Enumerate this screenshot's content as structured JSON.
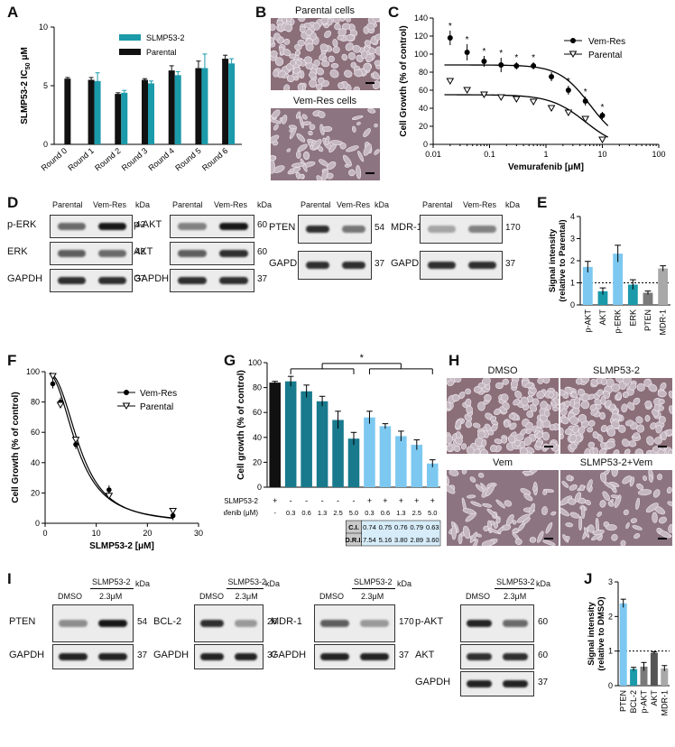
{
  "panel_labels": {
    "A": "A",
    "B": "B",
    "C": "C",
    "D": "D",
    "E": "E",
    "F": "F",
    "G": "G",
    "H": "H",
    "I": "I",
    "J": "J"
  },
  "colors": {
    "teal": "#1b9aaa",
    "darkteal": "#187a8c",
    "lightblue": "#7cc8f0",
    "black": "#111111",
    "gray": "#7a7a7a",
    "lightgray": "#a8a8a8"
  },
  "panelB": {
    "top_title": "Parental cells",
    "bottom_title": "Vem-Res cells"
  },
  "panelD": {
    "header": {
      "parental": "Parental",
      "vemres": "Vem-Res",
      "kda": "kDa"
    },
    "blots": [
      {
        "rows": [
          {
            "label": "p-ERK",
            "kda": "42"
          },
          {
            "label": "ERK",
            "kda": "42"
          },
          {
            "label": "GAPDH",
            "kda": "37"
          }
        ]
      },
      {
        "rows": [
          {
            "label": "p-AKT",
            "kda": "60"
          },
          {
            "label": "AKT",
            "kda": "60"
          },
          {
            "label": "GAPDH",
            "kda": "37"
          }
        ]
      },
      {
        "rows": [
          {
            "label": "PTEN",
            "kda": "54"
          },
          {
            "label": "GAPDH",
            "kda": "37"
          }
        ]
      },
      {
        "rows": [
          {
            "label": "MDR-1",
            "kda": "170"
          },
          {
            "label": "GAPDH",
            "kda": "37"
          }
        ]
      }
    ]
  },
  "panelG_table": {
    "row1_label": "SLMP53-2",
    "row2_label": "Vemurafenib (μM)",
    "slmp": [
      "+",
      "-",
      "-",
      "-",
      "-",
      "-",
      "+",
      "+",
      "+",
      "+",
      "+"
    ],
    "vem": [
      "-",
      "0.3",
      "0.6",
      "1.3",
      "2.5",
      "5.0",
      "0.3",
      "0.6",
      "1.3",
      "2.5",
      "5.0"
    ],
    "ci_label": "C.I.",
    "ci": [
      "0.74",
      "0.75",
      "0.76",
      "0.79",
      "0.63"
    ],
    "dri_label": "D.R.I.",
    "dri": [
      "7.54",
      "5.16",
      "3.80",
      "2.89",
      "3.60"
    ],
    "star": "*"
  },
  "panelH": {
    "labels": [
      "DMSO",
      "SLMP53-2",
      "Vem",
      "SLMP53-2+Vem"
    ]
  },
  "panelI": {
    "blots": [
      {
        "label": "PTEN",
        "kda": "54",
        "gapdh": "GAPDH",
        "gkda": "37"
      },
      {
        "label": "BCL-2",
        "kda": "26",
        "gapdh": "GAPDH",
        "gkda": "37"
      },
      {
        "label": "MDR-1",
        "kda": "170",
        "gapdh": "GAPDH",
        "gkda": "37"
      },
      {
        "label": "p-AKT",
        "kda": "60",
        "label2": "AKT",
        "kda2": "60",
        "gapdh": "GAPDH",
        "gkda": "37"
      }
    ],
    "treatment": "SLMP53-2",
    "dmso": "DMSO",
    "dose": "2.3μM",
    "kda": "kDa"
  },
  "chart_data": [
    {
      "panel": "A",
      "type": "bar",
      "ylabel": "SLMP53-2 IC50 μM",
      "ylim": [
        0,
        10
      ],
      "yticks": [
        0,
        5,
        10
      ],
      "categories": [
        "Round 0",
        "Round 1",
        "Round 2",
        "Round 3",
        "Round 4",
        "Round 5",
        "Round 6"
      ],
      "series": [
        {
          "name": "SLMP53-2",
          "color": "#1b9aaa",
          "values": [
            null,
            5.4,
            4.4,
            5.2,
            5.9,
            6.5,
            6.9
          ],
          "err": [
            0,
            0.7,
            0.2,
            0.2,
            0.3,
            1.2,
            0.4
          ]
        },
        {
          "name": "Parental",
          "color": "#111111",
          "values": [
            5.6,
            5.5,
            4.3,
            5.5,
            6.3,
            6.5,
            7.3
          ],
          "err": [
            0.1,
            0.2,
            0.1,
            0.1,
            0.4,
            0.6,
            0.3
          ]
        }
      ],
      "legend": "top-left"
    },
    {
      "panel": "C",
      "type": "scatter",
      "xlabel": "Vemurafenib [μM]",
      "ylabel": "Cell Growth (% of control)",
      "xscale": "log",
      "xlim": [
        0.01,
        100
      ],
      "xticks": [
        "0.01",
        "0.1",
        "1",
        "10",
        "100"
      ],
      "ylim": [
        0,
        140
      ],
      "yticks": [
        0,
        20,
        40,
        60,
        80,
        100,
        120,
        140
      ],
      "series": [
        {
          "name": "Vem-Res",
          "marker": "filled-circle",
          "x": [
            0.02,
            0.04,
            0.08,
            0.16,
            0.3,
            0.6,
            1.25,
            2.5,
            5,
            10
          ],
          "y": [
            118,
            102,
            92,
            88,
            87,
            87,
            75,
            60,
            48,
            32
          ],
          "err": [
            8,
            9,
            6,
            8,
            4,
            4,
            5,
            5,
            5,
            4
          ],
          "star": [
            true,
            true,
            true,
            true,
            true,
            true,
            false,
            true,
            true,
            true
          ]
        },
        {
          "name": "Parental",
          "marker": "open-triangle",
          "x": [
            0.02,
            0.04,
            0.08,
            0.16,
            0.3,
            0.6,
            1.25,
            2.5,
            5,
            10
          ],
          "y": [
            70,
            60,
            55,
            52,
            50,
            47,
            40,
            35,
            28,
            5
          ]
        }
      ],
      "legend": "top-right"
    },
    {
      "panel": "E",
      "type": "bar",
      "ylabel": "Signal intensity (relative to Parental)",
      "ylim": [
        0,
        4
      ],
      "yticks": [
        0,
        1,
        2,
        3,
        4
      ],
      "reference_line": 1,
      "categories": [
        "p-AKT",
        "AKT",
        "p-ERK",
        "ERK",
        "PTEN",
        "MDR-1"
      ],
      "values": [
        1.72,
        0.62,
        2.32,
        0.92,
        0.55,
        1.65
      ],
      "err": [
        0.25,
        0.15,
        0.38,
        0.22,
        0.08,
        0.12
      ],
      "colors": [
        "#7cc8f0",
        "#1b9aaa",
        "#7cc8f0",
        "#1b9aaa",
        "#7a7a7a",
        "#a8a8a8"
      ]
    },
    {
      "panel": "F",
      "type": "scatter",
      "xlabel": "SLMP53-2 [μM]",
      "ylabel": "Cell Growth (% of control)",
      "xlim": [
        0,
        30
      ],
      "xticks": [
        0,
        10,
        20,
        30
      ],
      "ylim": [
        0,
        100
      ],
      "yticks": [
        0,
        20,
        40,
        60,
        80,
        100
      ],
      "series": [
        {
          "name": "Vem-Res",
          "marker": "filled-circle",
          "x": [
            1.5,
            3,
            6,
            12.5,
            25
          ],
          "y": [
            92,
            80,
            52,
            22,
            5
          ]
        },
        {
          "name": "Parental",
          "marker": "open-triangle",
          "x": [
            1.5,
            3,
            6,
            12.5,
            25
          ],
          "y": [
            97,
            78,
            55,
            18,
            8
          ]
        }
      ],
      "legend": "top-right"
    },
    {
      "panel": "G",
      "type": "bar",
      "ylabel": "Cell growth (% of control)",
      "ylim": [
        0,
        100
      ],
      "yticks": [
        0,
        20,
        40,
        60,
        80,
        100
      ],
      "values": [
        84,
        85,
        77,
        69,
        54,
        39,
        56,
        49,
        41,
        34,
        19
      ],
      "err": [
        1,
        4,
        5,
        4,
        7,
        5,
        5,
        2,
        4,
        4,
        3
      ],
      "colors": [
        "#111111",
        "#187a8c",
        "#187a8c",
        "#187a8c",
        "#187a8c",
        "#187a8c",
        "#7cc8f0",
        "#7cc8f0",
        "#7cc8f0",
        "#7cc8f0",
        "#7cc8f0"
      ]
    },
    {
      "panel": "J",
      "type": "bar",
      "ylabel": "Signal intensity (relative to DMSO)",
      "ylim": [
        0,
        3
      ],
      "yticks": [
        0,
        1,
        2,
        3
      ],
      "reference_line": 1,
      "categories": [
        "PTEN",
        "BCL-2",
        "p-AKT",
        "AKT",
        "MDR-1"
      ],
      "values": [
        2.38,
        0.48,
        0.55,
        0.95,
        0.5
      ],
      "err": [
        0.12,
        0.05,
        0.12,
        0.03,
        0.08
      ],
      "colors": [
        "#7cc8f0",
        "#1b9aaa",
        "#7a7a7a",
        "#555555",
        "#a8a8a8"
      ]
    }
  ]
}
